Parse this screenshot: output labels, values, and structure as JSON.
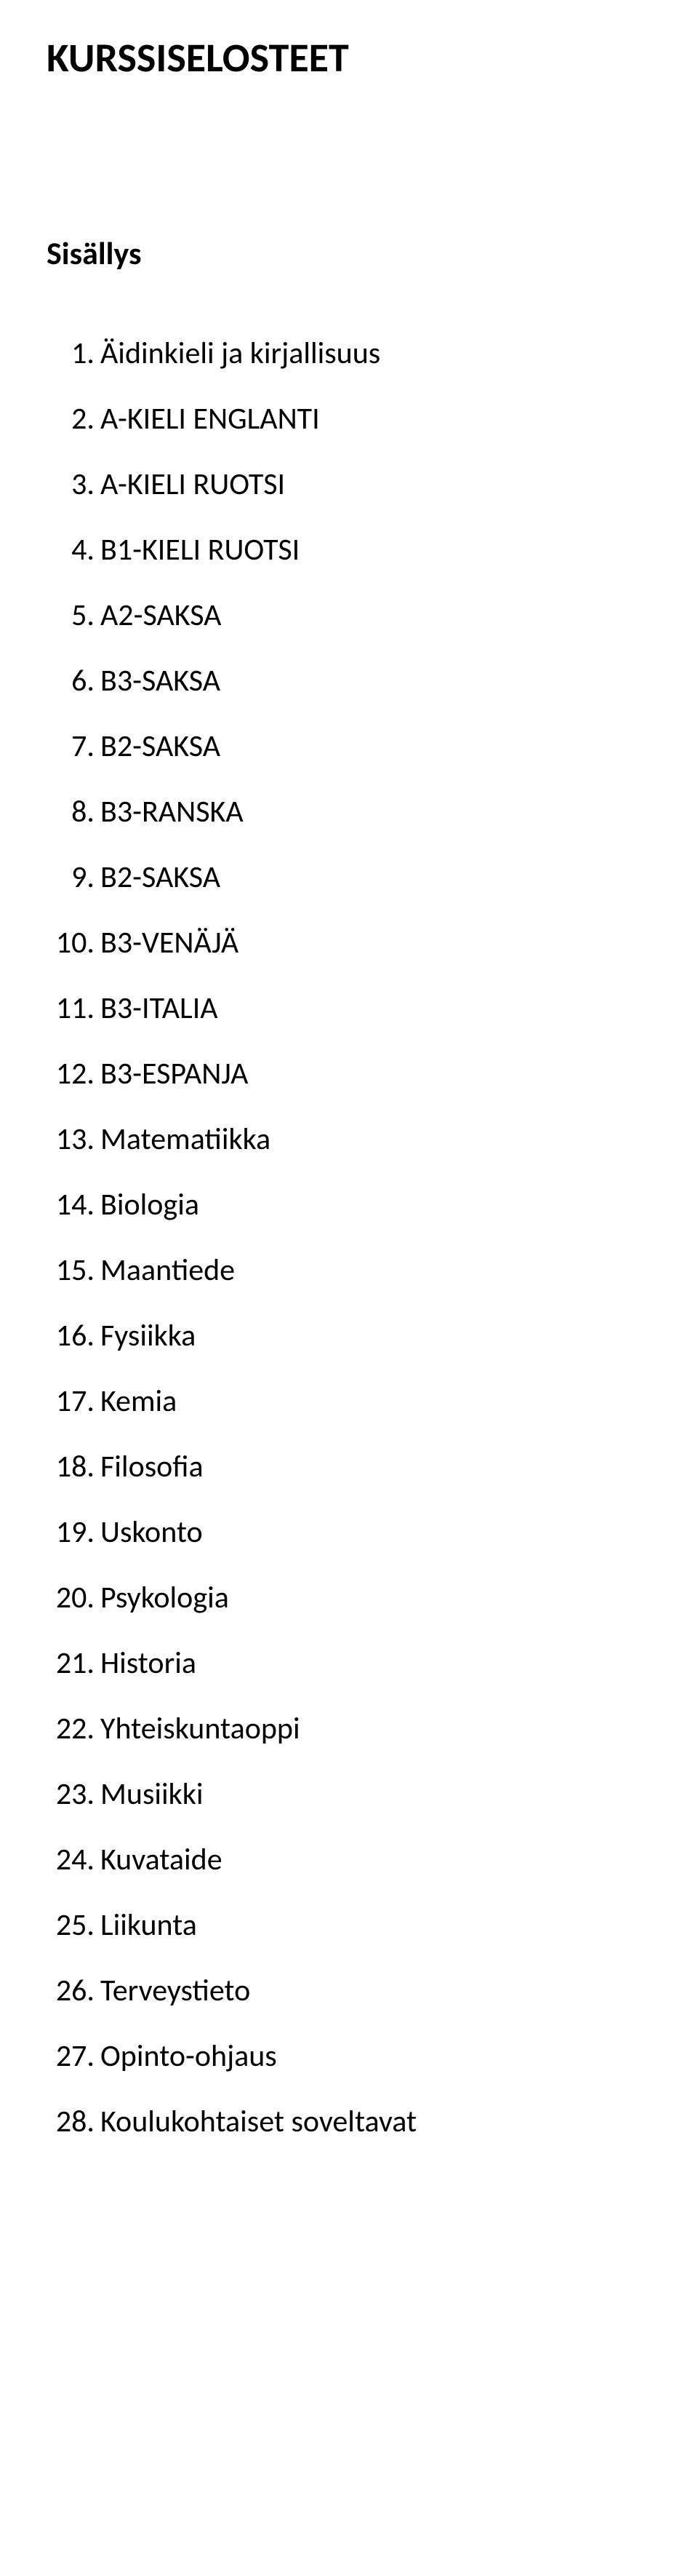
{
  "document": {
    "title": "KURSSISELOSTEET",
    "subtitle": "Sisällys",
    "title_fontsize": 56,
    "subtitle_fontsize": 44,
    "body_fontsize": 42,
    "text_color": "#000000",
    "background_color": "#ffffff"
  },
  "toc": {
    "items": [
      {
        "num": "1.",
        "label": "Äidinkieli ja kirjallisuus"
      },
      {
        "num": "2.",
        "label": "A-KIELI ENGLANTI"
      },
      {
        "num": "3.",
        "label": "A-KIELI RUOTSI"
      },
      {
        "num": "4.",
        "label": "B1-KIELI RUOTSI"
      },
      {
        "num": "5.",
        "label": "A2-SAKSA"
      },
      {
        "num": "6.",
        "label": "B3-SAKSA"
      },
      {
        "num": "7.",
        "label": "B2-SAKSA"
      },
      {
        "num": "8.",
        "label": "B3-RANSKA"
      },
      {
        "num": "9.",
        "label": "B2-SAKSA"
      },
      {
        "num": "10.",
        "label": "B3-VENÄJÄ"
      },
      {
        "num": "11.",
        "label": "B3-ITALIA"
      },
      {
        "num": "12.",
        "label": "B3-ESPANJA"
      },
      {
        "num": "13.",
        "label": "Matematiikka"
      },
      {
        "num": "14.",
        "label": "Biologia"
      },
      {
        "num": "15.",
        "label": "Maantiede"
      },
      {
        "num": "16.",
        "label": "Fysiikka"
      },
      {
        "num": "17.",
        "label": "Kemia"
      },
      {
        "num": "18.",
        "label": "Filosofia"
      },
      {
        "num": "19.",
        "label": "Uskonto"
      },
      {
        "num": "20.",
        "label": "Psykologia"
      },
      {
        "num": "21.",
        "label": "Historia"
      },
      {
        "num": "22.",
        "label": "Yhteiskuntaoppi"
      },
      {
        "num": "23.",
        "label": "Musiikki"
      },
      {
        "num": "24.",
        "label": "Kuvataide"
      },
      {
        "num": "25.",
        "label": "Liikunta"
      },
      {
        "num": "26.",
        "label": "Terveystieto"
      },
      {
        "num": "27.",
        "label": "Opinto-ohjaus"
      },
      {
        "num": "28.",
        "label": "Koulukohtaiset soveltavat"
      }
    ]
  }
}
